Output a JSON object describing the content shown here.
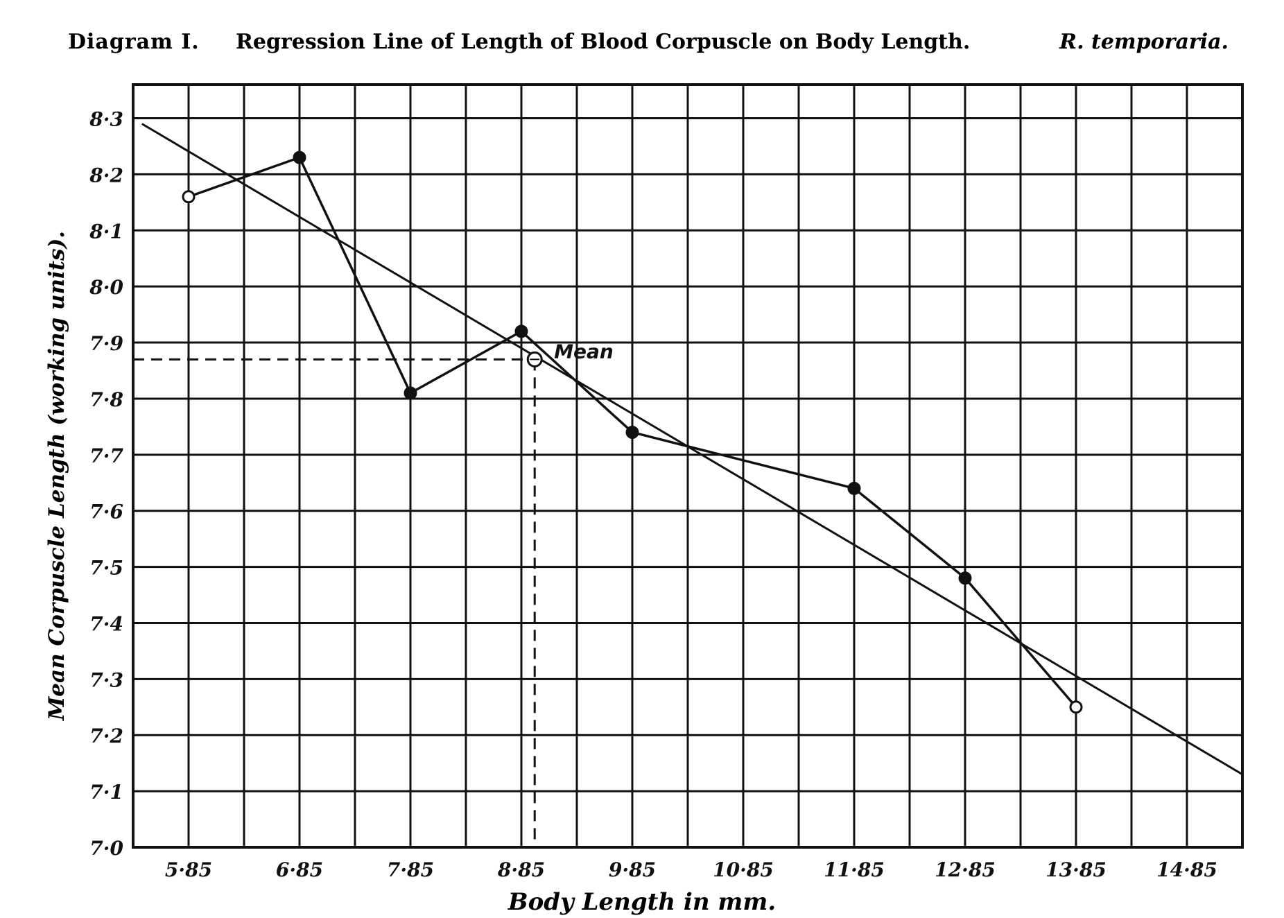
{
  "chart_data": {
    "type": "line",
    "title_prefix": "Diagram I.",
    "title_main": "Regression Line of Length of Blood Corpuscle on Body Length.",
    "title_species": "R. temporaria.",
    "xlabel": "Body Length in mm.",
    "ylabel": "Mean Corpuscle Length (working units).",
    "x_ticks": [
      "5·85",
      "6·85",
      "7·85",
      "8·85",
      "9·85",
      "10·85",
      "11·85",
      "12·85",
      "13·85",
      "14·85"
    ],
    "y_ticks": [
      "7·0",
      "7·1",
      "7·2",
      "7·3",
      "7·4",
      "7·5",
      "7·6",
      "7·7",
      "7·8",
      "7·9",
      "8·0",
      "8·1",
      "8·2",
      "8·3"
    ],
    "xlim": [
      5.35,
      15.35
    ],
    "ylim": [
      7.0,
      8.36
    ],
    "grid": true,
    "series": [
      {
        "style": "polygon",
        "x": [
          5.85,
          6.85,
          7.85,
          8.85,
          9.85,
          11.85,
          12.85,
          13.85
        ],
        "y": [
          8.16,
          8.23,
          7.81,
          7.92,
          7.74,
          7.64,
          7.48,
          7.25
        ],
        "markers": [
          "open",
          "filled",
          "filled",
          "filled",
          "filled",
          "filled",
          "filled",
          "open"
        ]
      },
      {
        "style": "regression",
        "x": [
          5.43,
          15.35
        ],
        "y": [
          8.29,
          7.13
        ]
      }
    ],
    "mean_point": {
      "x": 8.97,
      "y": 7.87,
      "label": "Mean"
    }
  }
}
